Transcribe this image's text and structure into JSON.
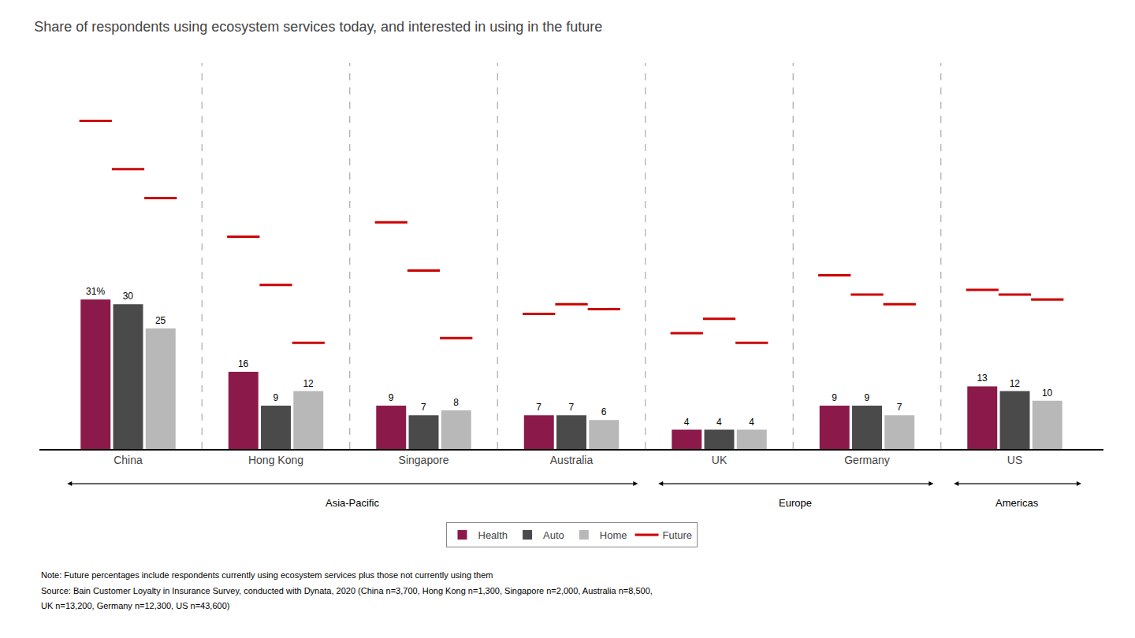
{
  "chart_data": {
    "type": "bar",
    "title": "Share of respondents using ecosystem services today, and interested in using in the future",
    "categories": [
      "China",
      "Hong Kong",
      "Singapore",
      "Australia",
      "UK",
      "Germany",
      "US"
    ],
    "series": [
      {
        "name": "Health",
        "color": "#8B1A4A",
        "values": [
          31,
          16,
          9,
          7,
          4,
          9,
          13
        ],
        "value_labels": [
          "31%",
          "16",
          "9",
          "7",
          "4",
          "9",
          "13"
        ],
        "future": [
          68,
          44,
          47,
          28,
          24,
          36,
          33
        ]
      },
      {
        "name": "Auto",
        "color": "#4A4A4A",
        "values": [
          30,
          9,
          7,
          7,
          4,
          9,
          12
        ],
        "future": [
          58,
          34,
          37,
          30,
          27,
          32,
          32
        ]
      },
      {
        "name": "Home",
        "color": "#B8B8B8",
        "values": [
          25,
          12,
          8,
          6,
          4,
          7,
          10
        ],
        "future": [
          52,
          22,
          23,
          29,
          22,
          30,
          31
        ]
      }
    ],
    "future_series": {
      "name": "Future",
      "color": "#CC0000",
      "line_style": "solid"
    },
    "regions": [
      {
        "label": "Asia-Pacific",
        "from": "China",
        "to": "Australia"
      },
      {
        "label": "Europe",
        "from": "UK",
        "to": "Germany"
      },
      {
        "label": "Americas",
        "from": "US",
        "to": "US"
      }
    ],
    "notes": [
      "Note: Future percentages include respondents currently using ecosystem services plus those not currently using them",
      "Source: Bain Customer Loyalty in Insurance Survey, conducted with Dynata, 2020 (China n=3,700, Hong Kong n=1,300, Singapore n=2,000, Australia n=8,500,",
      "UK n=13,200, Germany n=12,300, US n=43,600)"
    ],
    "ylim": [
      0,
      80
    ],
    "yticks": [],
    "tick_labels": "x",
    "grid": false,
    "legend": "bottom",
    "data_labels": true
  }
}
